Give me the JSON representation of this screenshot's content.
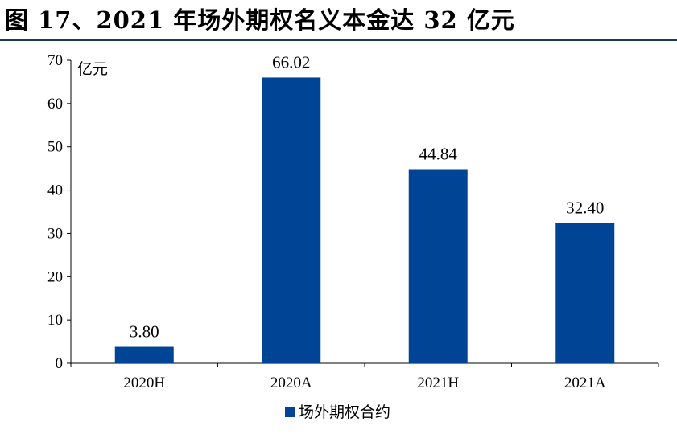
{
  "figure": {
    "title": "图 17、2021 年场外期权名义本金达 32 亿元"
  },
  "chart_data": {
    "type": "bar",
    "categories": [
      "2020H",
      "2020A",
      "2021H",
      "2021A"
    ],
    "series": [
      {
        "name": "场外期权合约",
        "values": [
          3.8,
          66.02,
          44.84,
          32.4
        ],
        "color": "#004595"
      }
    ],
    "data_labels": [
      "3.80",
      "66.02",
      "44.84",
      "32.40"
    ],
    "yunit": "亿元",
    "ylim": [
      0,
      70
    ],
    "yticks": [
      0,
      10,
      20,
      30,
      40,
      50,
      60,
      70
    ],
    "grid": false,
    "legend": "bottom-center"
  },
  "colors": {
    "bar": "#004595",
    "title_rule": "#1a3a6e"
  }
}
